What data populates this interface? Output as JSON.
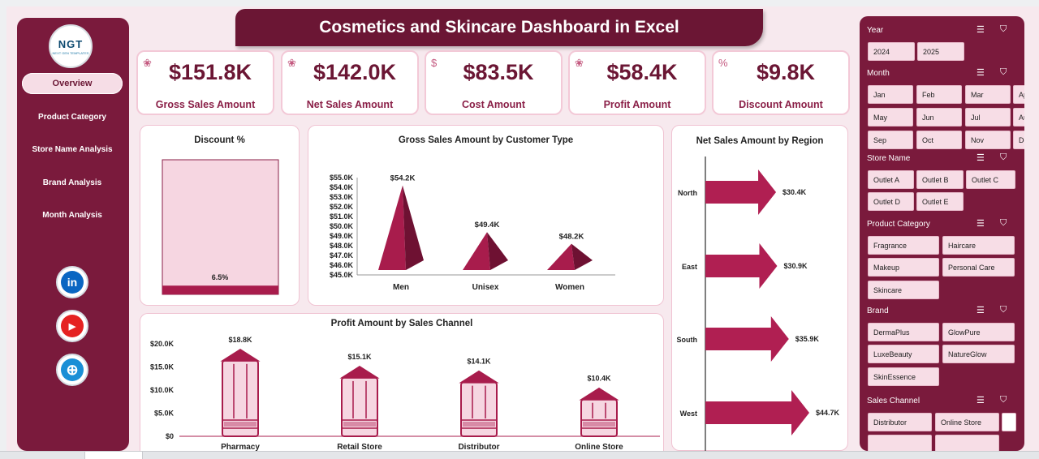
{
  "title": "Cosmetics and Skincare Dashboard in Excel",
  "logo": {
    "text": "NGT",
    "subtext": "NEXT GEN TEMPLATES"
  },
  "nav": [
    "Overview",
    "Product Category",
    "Store Name Analysis",
    "Brand Analysis",
    "Month Analysis"
  ],
  "social": [
    {
      "name": "linkedin-icon",
      "glyph": "in",
      "color": "#0a66c2"
    },
    {
      "name": "youtube-icon",
      "glyph": "▶",
      "color": "#e52222"
    },
    {
      "name": "website-icon",
      "glyph": "⊕",
      "color": "#1a8fd6"
    }
  ],
  "kpis": [
    {
      "value": "$151.8K",
      "label": "Gross Sales Amount"
    },
    {
      "value": "$142.0K",
      "label": "Net Sales Amount"
    },
    {
      "value": "$83.5K",
      "label": "Cost Amount"
    },
    {
      "value": "$58.4K",
      "label": "Profit Amount"
    },
    {
      "value": "$9.8K",
      "label": "Discount Amount"
    }
  ],
  "colors": {
    "accent": "#7a1a3c",
    "chart": "#a81c4c",
    "light": "#f6d6e1"
  },
  "chart_data": [
    {
      "type": "bar",
      "title": "Discount %",
      "categories": [
        ""
      ],
      "values": [
        6.5
      ],
      "ylim": [
        0,
        100
      ],
      "data_labels": [
        "6.5%"
      ]
    },
    {
      "type": "bar",
      "title": "Gross Sales Amount by Customer Type",
      "categories": [
        "Men",
        "Unisex",
        "Women"
      ],
      "values": [
        54.2,
        49.4,
        48.2
      ],
      "data_labels": [
        "$54.2K",
        "$49.4K",
        "$48.2K"
      ],
      "ylim": [
        45,
        55
      ],
      "yticks": [
        "$55.0K",
        "$54.0K",
        "$53.0K",
        "$52.0K",
        "$51.0K",
        "$50.0K",
        "$49.0K",
        "$48.0K",
        "$47.0K",
        "$46.0K",
        "$45.0K"
      ]
    },
    {
      "type": "bar",
      "title": "Net Sales Amount by Region",
      "categories": [
        "North",
        "East",
        "South",
        "West"
      ],
      "values": [
        30.4,
        30.9,
        35.9,
        44.7
      ],
      "data_labels": [
        "$30.4K",
        "$30.9K",
        "$35.9K",
        "$44.7K"
      ],
      "orientation": "horizontal"
    },
    {
      "type": "bar",
      "title": "Profit Amount by Sales Channel",
      "categories": [
        "Pharmacy",
        "Retail Store",
        "Distributor",
        "Online Store"
      ],
      "values": [
        18.8,
        15.1,
        14.1,
        10.4
      ],
      "data_labels": [
        "$18.8K",
        "$15.1K",
        "$14.1K",
        "$10.4K"
      ],
      "ylim": [
        0,
        20
      ],
      "yticks": [
        "$20.0K",
        "$15.0K",
        "$10.0K",
        "$5.0K",
        "$0"
      ]
    }
  ],
  "filters": {
    "year": {
      "title": "Year",
      "items": [
        "2024",
        "2025"
      ]
    },
    "month": {
      "title": "Month",
      "items": [
        "Jan",
        "Feb",
        "Mar",
        "Apr",
        "May",
        "Jun",
        "Jul",
        "Aug",
        "Sep",
        "Oct",
        "Nov",
        "Dec"
      ]
    },
    "store": {
      "title": "Store Name",
      "items": [
        "Outlet A",
        "Outlet B",
        "Outlet C",
        "Outlet D",
        "Outlet E"
      ]
    },
    "category": {
      "title": "Product Category",
      "items": [
        "Fragrance",
        "Haircare",
        "Makeup",
        "Personal Care",
        "Skincare"
      ]
    },
    "brand": {
      "title": "Brand",
      "items": [
        "DermaPlus",
        "GlowPure",
        "LuxeBeauty",
        "NatureGlow",
        "SkinEssence"
      ]
    },
    "channel": {
      "title": "Sales Channel",
      "items": [
        "Distributor",
        "Online Store"
      ]
    }
  }
}
